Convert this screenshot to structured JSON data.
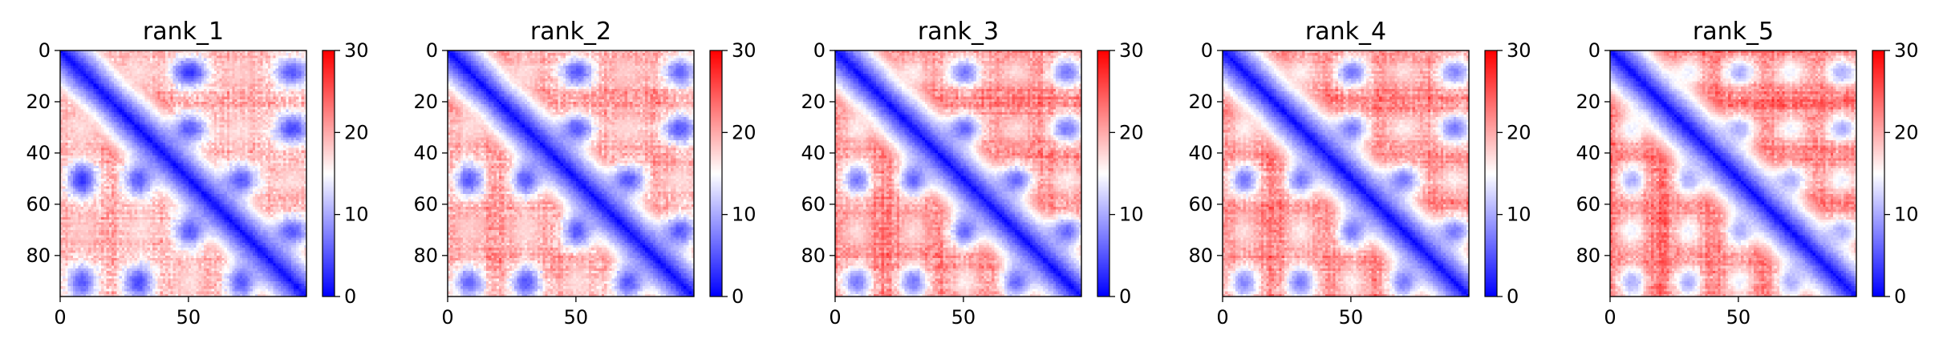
{
  "chart_data": [
    {
      "type": "heatmap",
      "title": "rank_1",
      "xlabel": "",
      "ylabel": "",
      "matrix_size": 96,
      "xticks": [
        0,
        50
      ],
      "yticks": [
        0,
        20,
        40,
        60,
        80
      ],
      "color_scale": {
        "min": 0,
        "max": 30,
        "ticks": [
          0,
          10,
          20,
          30
        ],
        "colormap": "bwr",
        "low": "#0000ff",
        "mid": "#ffffff",
        "high": "#ff0000"
      },
      "pattern": {
        "background": 20,
        "seed": 11,
        "blobs": [
          [
            8,
            30,
            17
          ],
          [
            8,
            50,
            3
          ],
          [
            8,
            70,
            18
          ],
          [
            8,
            90,
            5
          ],
          [
            30,
            50,
            5
          ],
          [
            30,
            70,
            17
          ],
          [
            30,
            90,
            4
          ],
          [
            50,
            70,
            5
          ],
          [
            50,
            90,
            17
          ],
          [
            70,
            90,
            5
          ]
        ]
      }
    },
    {
      "type": "heatmap",
      "title": "rank_2",
      "xlabel": "",
      "ylabel": "",
      "matrix_size": 96,
      "xticks": [
        0,
        50
      ],
      "yticks": [
        0,
        20,
        40,
        60,
        80
      ],
      "color_scale": {
        "min": 0,
        "max": 30,
        "ticks": [
          0,
          10,
          20,
          30
        ],
        "colormap": "bwr",
        "low": "#0000ff",
        "mid": "#ffffff",
        "high": "#ff0000"
      },
      "pattern": {
        "background": 21,
        "seed": 23,
        "blobs": [
          [
            8,
            30,
            17
          ],
          [
            8,
            50,
            5
          ],
          [
            8,
            70,
            18
          ],
          [
            8,
            90,
            6
          ],
          [
            30,
            50,
            5
          ],
          [
            30,
            70,
            17
          ],
          [
            30,
            90,
            5
          ],
          [
            50,
            70,
            5
          ],
          [
            50,
            90,
            17
          ],
          [
            70,
            90,
            5
          ]
        ]
      }
    },
    {
      "type": "heatmap",
      "title": "rank_3",
      "xlabel": "",
      "ylabel": "",
      "matrix_size": 96,
      "xticks": [
        0,
        50
      ],
      "yticks": [
        0,
        20,
        40,
        60,
        80
      ],
      "color_scale": {
        "min": 0,
        "max": 30,
        "ticks": [
          0,
          10,
          20,
          30
        ],
        "colormap": "bwr",
        "low": "#0000ff",
        "mid": "#ffffff",
        "high": "#ff0000"
      },
      "pattern": {
        "background": 23,
        "seed": 37,
        "blobs": [
          [
            8,
            30,
            16
          ],
          [
            8,
            50,
            7
          ],
          [
            8,
            70,
            17
          ],
          [
            8,
            90,
            7
          ],
          [
            30,
            50,
            6
          ],
          [
            30,
            70,
            17
          ],
          [
            30,
            90,
            7
          ],
          [
            50,
            70,
            6
          ],
          [
            50,
            90,
            16
          ],
          [
            70,
            90,
            6
          ]
        ]
      }
    },
    {
      "type": "heatmap",
      "title": "rank_4",
      "xlabel": "",
      "ylabel": "",
      "matrix_size": 96,
      "xticks": [
        0,
        50
      ],
      "yticks": [
        0,
        20,
        40,
        60,
        80
      ],
      "color_scale": {
        "min": 0,
        "max": 30,
        "ticks": [
          0,
          10,
          20,
          30
        ],
        "colormap": "bwr",
        "low": "#0000ff",
        "mid": "#ffffff",
        "high": "#ff0000"
      },
      "pattern": {
        "background": 23,
        "seed": 51,
        "blobs": [
          [
            8,
            30,
            16
          ],
          [
            8,
            50,
            7
          ],
          [
            8,
            70,
            17
          ],
          [
            8,
            90,
            8
          ],
          [
            30,
            50,
            7
          ],
          [
            30,
            70,
            16
          ],
          [
            30,
            90,
            7
          ],
          [
            50,
            70,
            7
          ],
          [
            50,
            90,
            16
          ],
          [
            70,
            90,
            7
          ]
        ]
      }
    },
    {
      "type": "heatmap",
      "title": "rank_5",
      "xlabel": "",
      "ylabel": "",
      "matrix_size": 96,
      "xticks": [
        0,
        50
      ],
      "yticks": [
        0,
        20,
        40,
        60,
        80
      ],
      "color_scale": {
        "min": 0,
        "max": 30,
        "ticks": [
          0,
          10,
          20,
          30
        ],
        "colormap": "bwr",
        "low": "#0000ff",
        "mid": "#ffffff",
        "high": "#ff0000"
      },
      "pattern": {
        "background": 24,
        "seed": 67,
        "blobs": [
          [
            8,
            30,
            14
          ],
          [
            8,
            50,
            10
          ],
          [
            8,
            70,
            14
          ],
          [
            8,
            90,
            10
          ],
          [
            30,
            50,
            10
          ],
          [
            30,
            70,
            14
          ],
          [
            30,
            90,
            10
          ],
          [
            50,
            70,
            10
          ],
          [
            50,
            90,
            14
          ],
          [
            70,
            90,
            10
          ]
        ]
      }
    }
  ]
}
